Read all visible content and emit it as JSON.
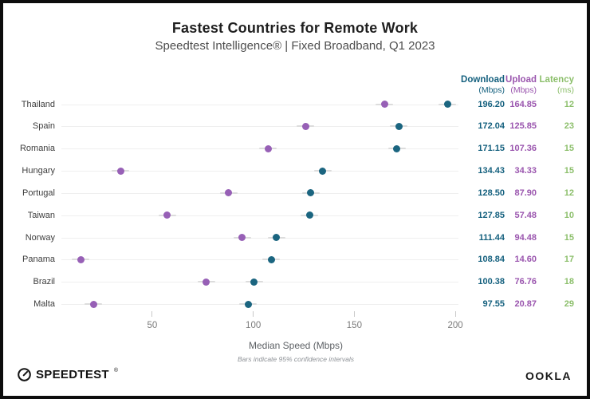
{
  "title": "Fastest Countries for Remote Work",
  "subtitle": "Speedtest Intelligence® | Fixed Broadband, Q1 2023",
  "columns": {
    "download": {
      "label": "Download",
      "unit": "(Mbps)"
    },
    "upload": {
      "label": "Upload",
      "unit": "(Mbps)"
    },
    "latency": {
      "label": "Latency",
      "unit": "(ms)"
    }
  },
  "colors": {
    "download": "#14607e",
    "upload": "#9a55ae",
    "latency": "#8cbf6b",
    "download_dot": "#1b6580",
    "upload_dot": "#9760b6",
    "gridline": "#efefef",
    "ci_bar": "#dcdcdc"
  },
  "chart_data": {
    "type": "scatter",
    "subtype": "horizontal-dot-plot",
    "categories": [
      "Thailand",
      "Spain",
      "Romania",
      "Hungary",
      "Portugal",
      "Taiwan",
      "Norway",
      "Panama",
      "Brazil",
      "Malta"
    ],
    "series": [
      {
        "name": "Download (Mbps)",
        "color": "#1b6580",
        "values": [
          196.2,
          172.04,
          171.15,
          134.43,
          128.5,
          127.85,
          111.44,
          108.84,
          100.38,
          97.55
        ]
      },
      {
        "name": "Upload (Mbps)",
        "color": "#9760b6",
        "values": [
          164.85,
          125.85,
          107.36,
          34.33,
          87.9,
          57.48,
          94.48,
          14.6,
          76.76,
          20.87
        ]
      }
    ],
    "latency_ms": [
      12,
      23,
      15,
      15,
      12,
      10,
      15,
      17,
      18,
      29
    ],
    "xlabel": "Median Speed (Mbps)",
    "x_ticks": [
      50,
      100,
      150,
      200
    ],
    "xlim": [
      0,
      210
    ],
    "grid": "horizontal row lines",
    "legend_position": "none",
    "footnote": "Bars indicate 95% confidence intervals"
  },
  "footer": {
    "speedtest_label": "SPEEDTEST",
    "speedtest_mark": "®",
    "ookla_label": "OOKLA"
  }
}
